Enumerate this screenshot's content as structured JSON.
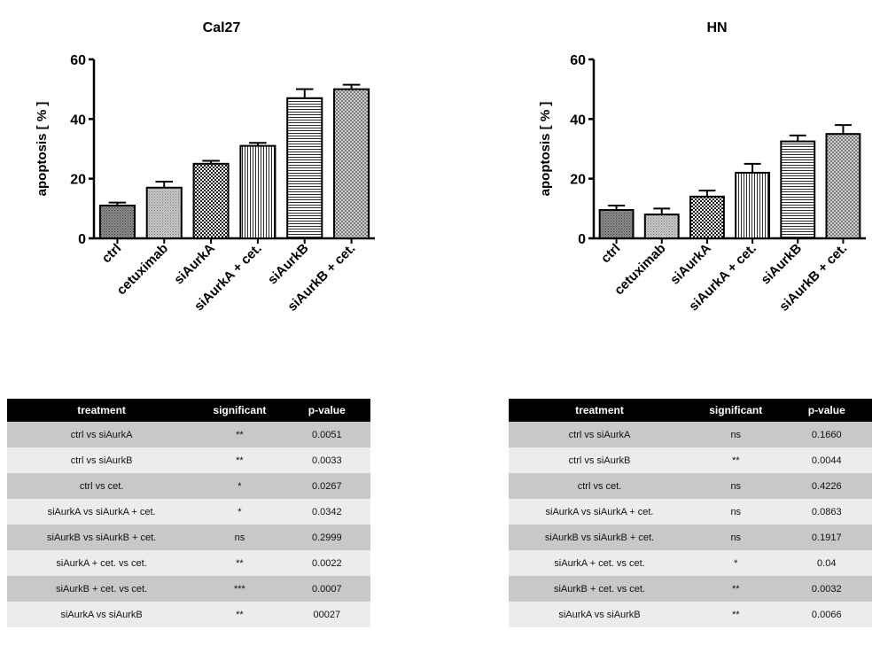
{
  "chart_data": [
    {
      "type": "bar",
      "title": "Cal27",
      "ylabel": "apoptosis [ % ]",
      "ylim": [
        0,
        60
      ],
      "yticks": [
        0,
        20,
        40,
        60
      ],
      "categories": [
        "ctrl",
        "cetuximab",
        "siAurkA",
        "siAurkA + cet.",
        "siAurkB",
        "siAurkB + cet."
      ],
      "values": [
        11,
        17,
        25,
        31,
        47,
        50
      ],
      "errors": [
        1,
        2,
        1,
        1,
        3,
        1.5
      ],
      "patterns": [
        "dots-dark",
        "dots-light",
        "checker",
        "vlines",
        "hlines",
        "crosshatch"
      ]
    },
    {
      "type": "bar",
      "title": "HN",
      "ylabel": "apoptosis [ % ]",
      "ylim": [
        0,
        60
      ],
      "yticks": [
        0,
        20,
        40,
        60
      ],
      "categories": [
        "ctrl",
        "cetuximab",
        "siAurkA",
        "siAurkA + cet.",
        "siAurkB",
        "siAurkB + cet."
      ],
      "values": [
        9.5,
        8,
        14,
        22,
        32.5,
        35
      ],
      "errors": [
        1.5,
        2,
        2,
        3,
        2,
        3
      ],
      "patterns": [
        "dots-dark",
        "dots-light",
        "checker",
        "vlines",
        "hlines",
        "crosshatch"
      ]
    }
  ],
  "tables": [
    {
      "headers": [
        "treatment",
        "significant",
        "p-value"
      ],
      "rows": [
        [
          "ctrl vs siAurkA",
          "**",
          "0.0051"
        ],
        [
          "ctrl vs siAurkB",
          "**",
          "0.0033"
        ],
        [
          "ctrl vs cet.",
          "*",
          "0.0267"
        ],
        [
          "siAurkA vs siAurkA + cet.",
          "*",
          "0.0342"
        ],
        [
          "siAurkB vs siAurkB + cet.",
          "ns",
          "0.2999"
        ],
        [
          "siAurkA + cet. vs cet.",
          "**",
          "0.0022"
        ],
        [
          "siAurkB + cet. vs cet.",
          "***",
          "0.0007"
        ],
        [
          "siAurkA vs siAurkB",
          "**",
          "00027"
        ]
      ]
    },
    {
      "headers": [
        "treatment",
        "significant",
        "p-value"
      ],
      "rows": [
        [
          "ctrl vs siAurkA",
          "ns",
          "0.1660"
        ],
        [
          "ctrl vs siAurkB",
          "**",
          "0.0044"
        ],
        [
          "ctrl vs cet.",
          "ns",
          "0.4226"
        ],
        [
          "siAurkA vs siAurkA + cet.",
          "ns",
          "0.0863"
        ],
        [
          "siAurkB vs siAurkB + cet.",
          "ns",
          "0.1917"
        ],
        [
          "siAurkA + cet. vs cet.",
          "*",
          "0.04"
        ],
        [
          "siAurkB + cet. vs cet.",
          "**",
          "0.0032"
        ],
        [
          "siAurkA vs siAurkB",
          "**",
          "0.0066"
        ]
      ]
    }
  ]
}
